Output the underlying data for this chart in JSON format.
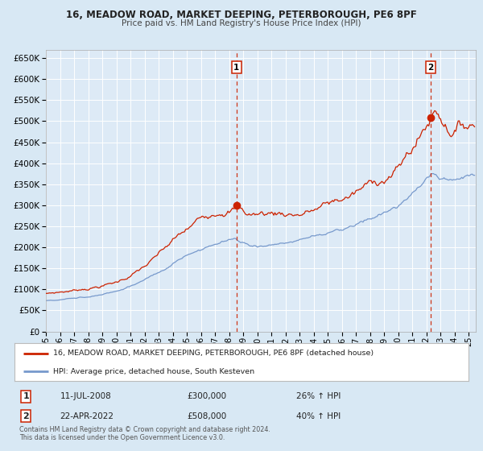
{
  "title_line1": "16, MEADOW ROAD, MARKET DEEPING, PETERBOROUGH, PE6 8PF",
  "title_line2": "Price paid vs. HM Land Registry's House Price Index (HPI)",
  "bg_color": "#d8e8f4",
  "plot_bg_color": "#ddeaf6",
  "red_color": "#cc2200",
  "blue_color": "#7799cc",
  "marker_color": "#cc2200",
  "grid_color": "#ffffff",
  "ylim": [
    0,
    670000
  ],
  "ytick_step": 50000,
  "sale1_x": 2008.53,
  "sale1_y": 300000,
  "sale1_label": "1",
  "sale2_x": 2022.31,
  "sale2_y": 508000,
  "sale2_label": "2",
  "legend_label_red": "16, MEADOW ROAD, MARKET DEEPING, PETERBOROUGH, PE6 8PF (detached house)",
  "legend_label_blue": "HPI: Average price, detached house, South Kesteven",
  "annotation1_num": "1",
  "annotation1_date": "11-JUL-2008",
  "annotation1_price": "£300,000",
  "annotation1_hpi": "26% ↑ HPI",
  "annotation2_num": "2",
  "annotation2_date": "22-APR-2022",
  "annotation2_price": "£508,000",
  "annotation2_hpi": "40% ↑ HPI",
  "footer": "Contains HM Land Registry data © Crown copyright and database right 2024.\nThis data is licensed under the Open Government Licence v3.0.",
  "xlim_start": 1995,
  "xlim_end": 2025.5
}
